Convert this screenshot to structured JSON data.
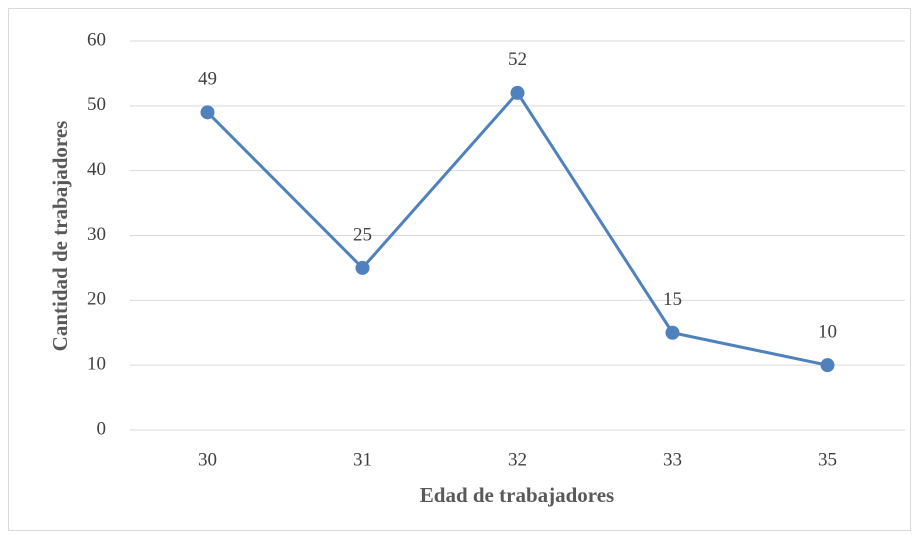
{
  "chart_data": {
    "type": "line",
    "xlabel": "Edad de trabajadores",
    "ylabel": "Cantidad de trabajadores",
    "categories": [
      "30",
      "31",
      "32",
      "33",
      "35"
    ],
    "values": [
      49,
      25,
      52,
      15,
      10
    ],
    "color": "#4f81bd",
    "ylim": [
      0,
      60
    ],
    "yticks": [
      0,
      10,
      20,
      30,
      40,
      50,
      60
    ],
    "grid": true
  }
}
